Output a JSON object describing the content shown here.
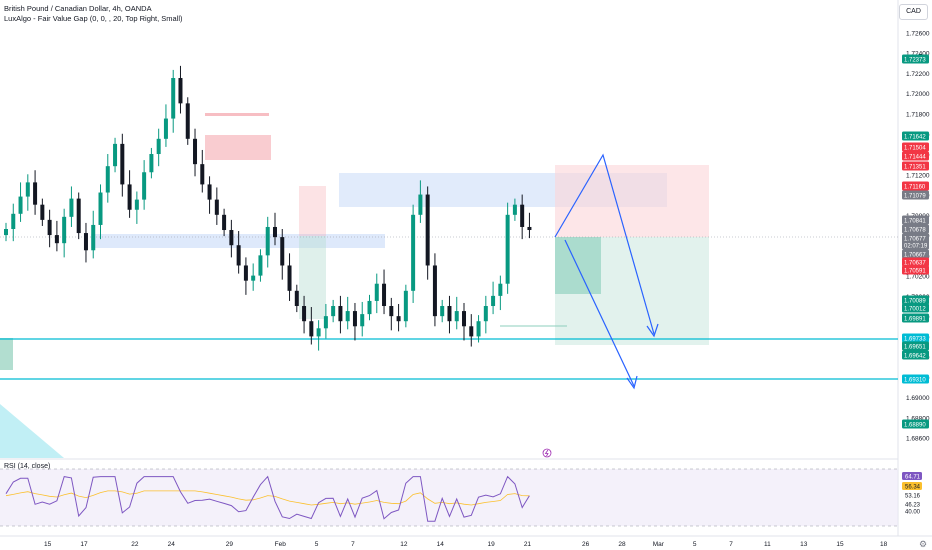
{
  "legend": {
    "symbol": "British Pound / Canadian Dollar, 4h, OANDA",
    "indicator": "LuxAlgo - Fair Value Gap (0, 0, , 20, Top Right, Small)"
  },
  "currency_button": "CAD",
  "rsi_legend": "RSI (14, close)",
  "colors": {
    "up": "#089981",
    "down": "#131722",
    "red_label": "#f23645",
    "green_label": "#089981",
    "teal_line": "#00bcd4",
    "blue_arrow": "#2962ff",
    "fvg_blue": "#c3d7f7",
    "fvg_red": "#f4a3aa",
    "rsi_line": "#7e57c2",
    "rsi_ma": "#fbc02d"
  },
  "chart_data": {
    "type": "candlestick",
    "symbol": "GBPCAD",
    "timeframe": "4h",
    "y_range": [
      1.684,
      1.7292
    ],
    "y_ticks": [
      1.686,
      1.688,
      1.69,
      1.692,
      1.694,
      1.696,
      1.698,
      1.7,
      1.702,
      1.704,
      1.706,
      1.708,
      1.71,
      1.712,
      1.714,
      1.716,
      1.718,
      1.72,
      1.722,
      1.724,
      1.726
    ],
    "x_labels": [
      {
        "label": "15",
        "bar": 6
      },
      {
        "label": "17",
        "bar": 11
      },
      {
        "label": "22",
        "bar": 18
      },
      {
        "label": "24",
        "bar": 23
      },
      {
        "label": "29",
        "bar": 31
      },
      {
        "label": "Feb",
        "bar": 38
      },
      {
        "label": "5",
        "bar": 43
      },
      {
        "label": "7",
        "bar": 48
      },
      {
        "label": "12",
        "bar": 55
      },
      {
        "label": "14",
        "bar": 60
      },
      {
        "label": "19",
        "bar": 67
      },
      {
        "label": "21",
        "bar": 72
      },
      {
        "label": "26",
        "bar": 80
      },
      {
        "label": "28",
        "bar": 85
      },
      {
        "label": "Mar",
        "bar": 90
      },
      {
        "label": "5",
        "bar": 95
      },
      {
        "label": "7",
        "bar": 100
      },
      {
        "label": "11",
        "bar": 105
      },
      {
        "label": "13",
        "bar": 110
      },
      {
        "label": "15",
        "bar": 115
      },
      {
        "label": "18",
        "bar": 121
      }
    ],
    "closes": [
      1.7066,
      1.7081,
      1.7098,
      1.7112,
      1.709,
      1.7075,
      1.706,
      1.7052,
      1.7078,
      1.7096,
      1.7062,
      1.7045,
      1.707,
      1.7102,
      1.7128,
      1.715,
      1.711,
      1.7085,
      1.7095,
      1.7122,
      1.714,
      1.7155,
      1.7175,
      1.7215,
      1.719,
      1.7155,
      1.713,
      1.711,
      1.7095,
      1.708,
      1.7065,
      1.705,
      1.703,
      1.7015,
      1.702,
      1.704,
      1.7068,
      1.7058,
      1.703,
      1.7005,
      1.699,
      1.6975,
      1.696,
      1.6968,
      1.698,
      1.699,
      1.6975,
      1.6985,
      1.697,
      1.6982,
      1.6995,
      1.7012,
      1.699,
      1.698,
      1.6975,
      1.7005,
      1.708,
      1.71,
      1.703,
      1.698,
      1.699,
      1.6975,
      1.6985,
      1.697,
      1.696,
      1.6975,
      1.699,
      1.7,
      1.7012,
      1.708,
      1.709,
      1.7068,
      1.7065
    ],
    "rsi": {
      "levels": [
        70,
        30
      ],
      "last": 64.71,
      "ma_last": 56.34
    },
    "price_labels": [
      {
        "value": "1.72373",
        "type": "green"
      },
      {
        "value": "1.71642",
        "type": "green"
      },
      {
        "value": "1.71504",
        "type": "red"
      },
      {
        "value": "1.71444",
        "type": "red"
      },
      {
        "value": "1.71351",
        "type": "red"
      },
      {
        "value": "1.71160",
        "type": "red"
      },
      {
        "value": "1.71079",
        "type": "gray"
      },
      {
        "value": "1.70841",
        "type": "gray"
      },
      {
        "value": "1.70678",
        "type": "gray"
      },
      {
        "value": "1.70677",
        "type": "gray"
      },
      {
        "value": "02:07:19",
        "type": "gray"
      },
      {
        "value": "1.70667",
        "type": "gray"
      },
      {
        "value": "1.70637",
        "type": "red"
      },
      {
        "value": "1.70591",
        "type": "red"
      },
      {
        "value": "1.70089",
        "type": "green"
      },
      {
        "value": "1.70012",
        "type": "green"
      },
      {
        "value": "1.69891",
        "type": "green"
      },
      {
        "value": "1.69733",
        "type": "teal"
      },
      {
        "value": "1.69651",
        "type": "green"
      },
      {
        "value": "1.69642",
        "type": "green"
      },
      {
        "value": "1.69310",
        "type": "teal"
      },
      {
        "value": "1.68890",
        "type": "green"
      }
    ],
    "rsi_labels": [
      {
        "value": "64.71",
        "type": "purple"
      },
      {
        "value": "56.34",
        "type": "yellow"
      },
      {
        "value": "53.16",
        "type": "plain"
      },
      {
        "value": "46.23",
        "type": "plain"
      },
      {
        "value": "40.00",
        "type": "plain"
      }
    ]
  }
}
